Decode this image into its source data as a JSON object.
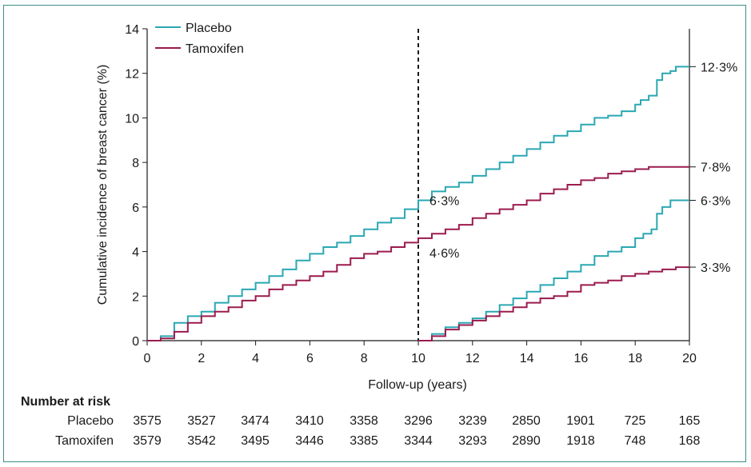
{
  "chart_data": {
    "type": "line",
    "title": "",
    "xlabel": "Follow-up (years)",
    "ylabel": "Cumulative incidence of breast cancer (%)",
    "xlim": [
      0,
      20
    ],
    "ylim": [
      0,
      14
    ],
    "xticks": [
      "0",
      "2",
      "4",
      "6",
      "8",
      "10",
      "12",
      "14",
      "16",
      "18",
      "20"
    ],
    "yticks": [
      "0",
      "2",
      "4",
      "6",
      "8",
      "10",
      "12",
      "14"
    ],
    "legend": {
      "position": "top-left",
      "entries": [
        "Placebo",
        "Tamoxifen"
      ]
    },
    "colors": {
      "placebo": "#2aa7b3",
      "tamoxifen": "#9b1b4e"
    },
    "vline_x": 10,
    "series": [
      {
        "name": "Placebo",
        "group": "full",
        "x": [
          0,
          0.5,
          1,
          1.5,
          2,
          2.5,
          3,
          3.5,
          4,
          4.5,
          5,
          5.5,
          6,
          6.5,
          7,
          7.5,
          8,
          8.5,
          9,
          9.5,
          10,
          10.5,
          11,
          11.5,
          12,
          12.5,
          13,
          13.5,
          14,
          14.5,
          15,
          15.5,
          16,
          16.5,
          17,
          17.5,
          18,
          18.2,
          18.5,
          18.8,
          19,
          19.3,
          19.5,
          20
        ],
        "y": [
          0,
          0.2,
          0.8,
          1.1,
          1.3,
          1.7,
          2.0,
          2.3,
          2.6,
          2.9,
          3.2,
          3.6,
          3.9,
          4.2,
          4.4,
          4.7,
          5.0,
          5.3,
          5.5,
          5.9,
          6.3,
          6.7,
          6.9,
          7.1,
          7.4,
          7.7,
          8.0,
          8.3,
          8.6,
          8.9,
          9.2,
          9.4,
          9.7,
          10.0,
          10.1,
          10.3,
          10.6,
          10.8,
          11.0,
          11.7,
          12.0,
          12.1,
          12.3,
          12.3
        ]
      },
      {
        "name": "Tamoxifen",
        "group": "full",
        "x": [
          0,
          0.5,
          1,
          1.5,
          2,
          2.5,
          3,
          3.5,
          4,
          4.5,
          5,
          5.5,
          6,
          6.5,
          7,
          7.5,
          8,
          8.5,
          9,
          9.5,
          10,
          10.5,
          11,
          11.5,
          12,
          12.5,
          13,
          13.5,
          14,
          14.5,
          15,
          15.5,
          16,
          16.5,
          17,
          17.5,
          18,
          18.5,
          19,
          19.5,
          20
        ],
        "y": [
          0,
          0.1,
          0.4,
          0.8,
          1.1,
          1.3,
          1.5,
          1.8,
          2.0,
          2.3,
          2.5,
          2.7,
          2.9,
          3.1,
          3.4,
          3.7,
          3.9,
          4.0,
          4.2,
          4.4,
          4.6,
          4.8,
          5.0,
          5.2,
          5.5,
          5.7,
          5.9,
          6.1,
          6.3,
          6.6,
          6.8,
          7.0,
          7.2,
          7.3,
          7.5,
          7.6,
          7.7,
          7.8,
          7.8,
          7.8,
          7.8
        ]
      },
      {
        "name": "Placebo",
        "group": "after-10",
        "x": [
          10,
          10.5,
          11,
          11.5,
          12,
          12.5,
          13,
          13.5,
          14,
          14.5,
          15,
          15.5,
          16,
          16.5,
          17,
          17.5,
          18,
          18.3,
          18.6,
          18.8,
          19,
          19.3,
          19.5,
          20
        ],
        "y": [
          0,
          0.3,
          0.6,
          0.8,
          1.0,
          1.3,
          1.6,
          1.9,
          2.2,
          2.5,
          2.8,
          3.1,
          3.4,
          3.8,
          4.0,
          4.2,
          4.6,
          4.8,
          5.0,
          5.7,
          6.0,
          6.3,
          6.3,
          6.3
        ]
      },
      {
        "name": "Tamoxifen",
        "group": "after-10",
        "x": [
          10,
          10.5,
          11,
          11.5,
          12,
          12.5,
          13,
          13.5,
          14,
          14.5,
          15,
          15.5,
          16,
          16.5,
          17,
          17.5,
          18,
          18.5,
          19,
          19.5,
          20
        ],
        "y": [
          0,
          0.2,
          0.5,
          0.7,
          0.9,
          1.1,
          1.3,
          1.5,
          1.7,
          1.9,
          2.0,
          2.2,
          2.5,
          2.6,
          2.7,
          2.9,
          3.0,
          3.1,
          3.2,
          3.3,
          3.3
        ]
      }
    ],
    "annotations": [
      {
        "text": "6·3%",
        "x": 10,
        "y": 6.3
      },
      {
        "text": "4·6%",
        "x": 10,
        "y": 4.6
      },
      {
        "text": "12·3%",
        "x": 20,
        "y": 12.3
      },
      {
        "text": "7·8%",
        "x": 20,
        "y": 7.8
      },
      {
        "text": "6·3%",
        "x": 20,
        "y": 6.3
      },
      {
        "text": "3·3%",
        "x": 20,
        "y": 3.3
      }
    ]
  },
  "risk_table": {
    "title": "Number at risk",
    "rows": [
      {
        "label": "Placebo",
        "values": [
          "3575",
          "3527",
          "3474",
          "3410",
          "3358",
          "3296",
          "3239",
          "2850",
          "1901",
          "725",
          "165"
        ]
      },
      {
        "label": "Tamoxifen",
        "values": [
          "3579",
          "3542",
          "3495",
          "3446",
          "3385",
          "3344",
          "3293",
          "2890",
          "1918",
          "748",
          "168"
        ]
      }
    ]
  }
}
